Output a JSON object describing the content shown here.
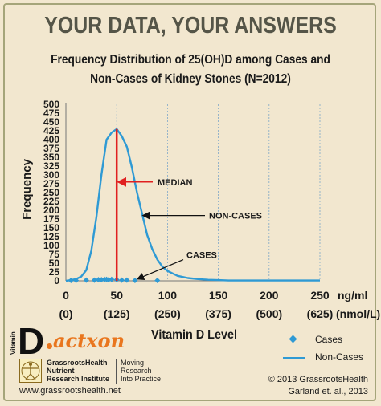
{
  "header": {
    "headline": "YOUR DATA, YOUR ANSWERS",
    "title_line1": "Frequency Distribution of 25(OH)D among  Cases and",
    "title_line2": "Non-Cases of Kidney Stones (N=2012)"
  },
  "chart_data": {
    "type": "line",
    "title": "Frequency Distribution of 25(OH)D among  Cases and Non-Cases of Kidney Stones (N=2012)",
    "xlabel": "Vitamin D Level",
    "ylabel": "Frequency",
    "x_unit_primary": "ng/ml",
    "x_unit_secondary": "(nmol/L)",
    "xlim": [
      0,
      250
    ],
    "ylim": [
      0,
      500
    ],
    "x_ticks": [
      0,
      50,
      100,
      150,
      200,
      250
    ],
    "x_tick_labels": [
      "0",
      "50",
      "100",
      "150",
      "200",
      "250"
    ],
    "x_tick_labels_secondary": [
      "(0)",
      "(125)",
      "(250)",
      "(375)",
      "(500)",
      "(625)"
    ],
    "y_ticks": [
      0,
      25,
      50,
      75,
      100,
      125,
      150,
      175,
      200,
      225,
      250,
      275,
      300,
      325,
      350,
      375,
      400,
      425,
      450,
      475,
      500
    ],
    "grid": "vertical",
    "legend_position": "bottom-right",
    "colors": {
      "series": "#2f9ad4",
      "median": "#e02020",
      "grid": "#7fa8c8"
    },
    "series": [
      {
        "name": "Non-Cases",
        "marker": "line",
        "x": [
          0,
          5,
          10,
          15,
          20,
          25,
          30,
          35,
          40,
          45,
          50,
          55,
          60,
          65,
          70,
          75,
          80,
          85,
          90,
          95,
          100,
          110,
          120,
          130,
          140,
          150,
          160,
          180,
          200,
          220,
          250
        ],
        "y": [
          0,
          2,
          5,
          12,
          30,
          85,
          180,
          300,
          400,
          420,
          430,
          410,
          380,
          320,
          250,
          190,
          130,
          90,
          60,
          40,
          28,
          14,
          8,
          5,
          3,
          2,
          1,
          1,
          1,
          1,
          1
        ]
      },
      {
        "name": "Cases",
        "marker": "diamond",
        "x": [
          5,
          10,
          20,
          28,
          32,
          35,
          38,
          40,
          42,
          45,
          50,
          55,
          60,
          68,
          90
        ],
        "y": [
          1,
          1,
          2,
          2,
          3,
          3,
          4,
          4,
          3,
          4,
          3,
          2,
          2,
          1,
          1
        ]
      }
    ],
    "median": {
      "x": 50,
      "label": "MEDIAN"
    },
    "annotations": [
      {
        "text": "MEDIAN",
        "target": "median"
      },
      {
        "text": "NON-CASES",
        "target": "Non-Cases"
      },
      {
        "text": "CASES",
        "target": "Cases"
      }
    ]
  },
  "legend": {
    "cases_label": "Cases",
    "non_cases_label": "Non-Cases"
  },
  "footer": {
    "logo_vitamin": "Vitamin",
    "logo_d": "D",
    "logo_action": "actxon",
    "org_line1": "GrassrootsHealth",
    "org_line2": "Nutrient",
    "org_line3": "Research Institute",
    "tag_line1": "Moving",
    "tag_line2": "Research",
    "tag_line3": "Into Practice",
    "url": "www.grassrootshealth.net",
    "copyright_line1": "© 2013 GrassrootsHealth",
    "copyright_line2": "Garland et. al., 2013"
  }
}
